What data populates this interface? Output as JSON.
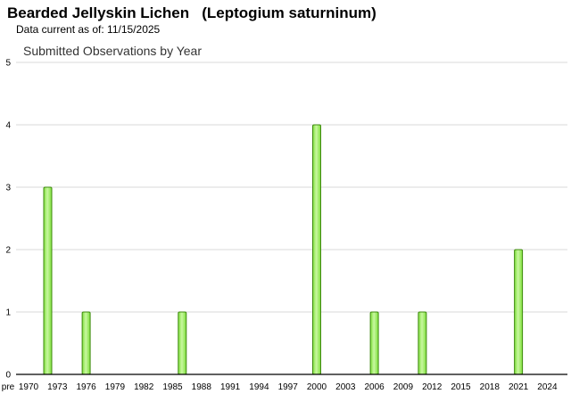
{
  "header": {
    "title": "Bearded Jellyskin Lichen   (Leptogium saturninum)",
    "data_current": "Data current as of: 11/15/2025"
  },
  "chart_data": {
    "type": "bar",
    "title": "Submitted Observations by Year",
    "xlabel": "",
    "ylabel": "",
    "ylim": [
      0,
      5
    ],
    "yticks": [
      0,
      1,
      2,
      3,
      4,
      5
    ],
    "grid": true,
    "x_tick_labels": [
      "pre",
      "1970",
      "1973",
      "1976",
      "1979",
      "1982",
      "1985",
      "1988",
      "1991",
      "1994",
      "1997",
      "2000",
      "2003",
      "2006",
      "2009",
      "2012",
      "2015",
      "2018",
      "2021",
      "2024"
    ],
    "bars": [
      {
        "year": 1972,
        "value": 3
      },
      {
        "year": 1976,
        "value": 1
      },
      {
        "year": 1986,
        "value": 1
      },
      {
        "year": 2000,
        "value": 4
      },
      {
        "year": 2006,
        "value": 1
      },
      {
        "year": 2011,
        "value": 1
      },
      {
        "year": 2021,
        "value": 2
      }
    ],
    "colors": {
      "bar_fill": "#7ee03a",
      "bar_stroke": "#3f8a10",
      "bar_highlight": "#c8f7a0"
    }
  }
}
